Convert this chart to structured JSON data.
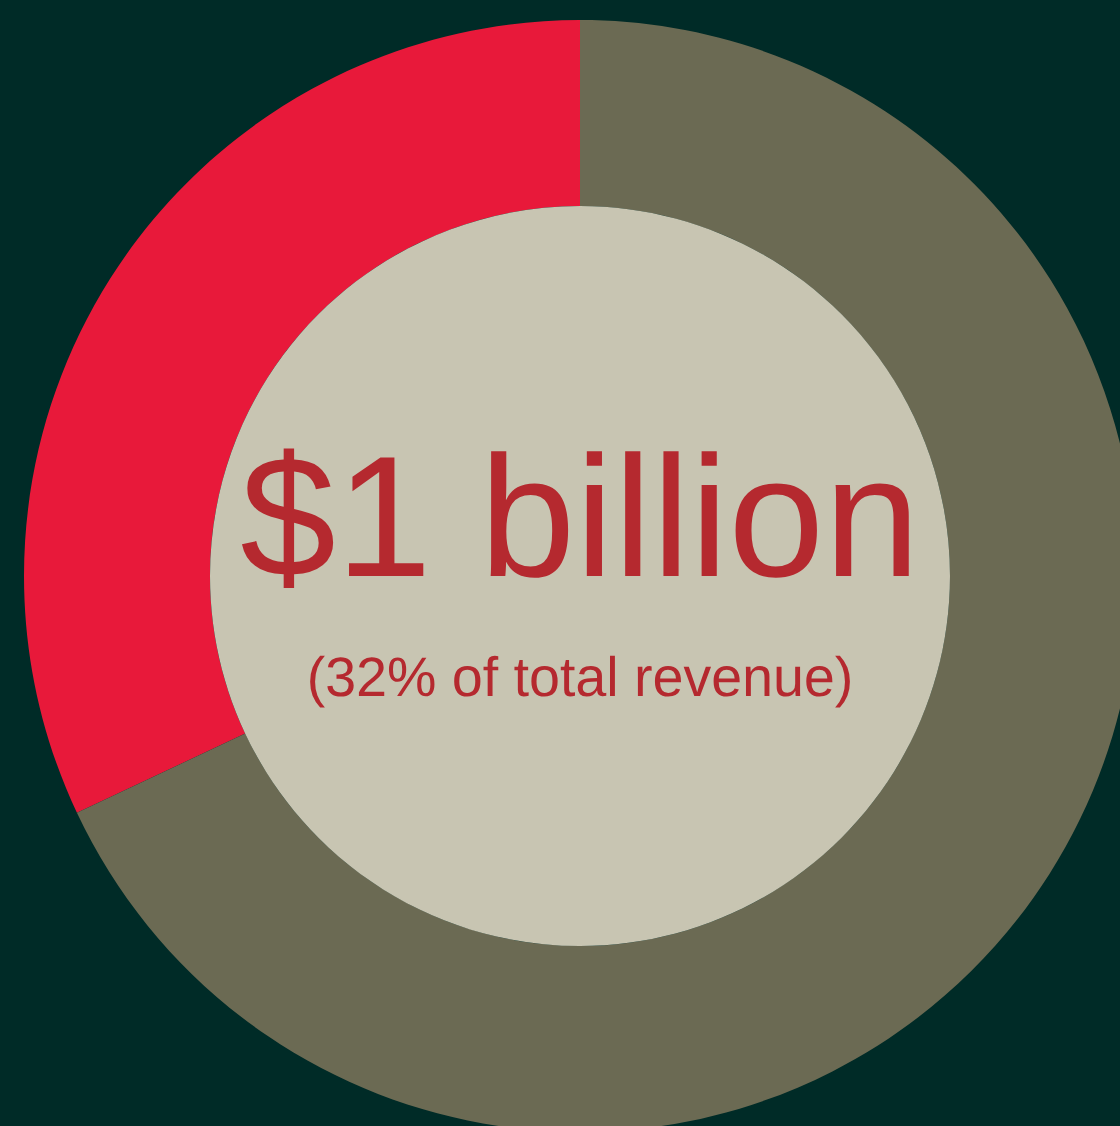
{
  "chart_data": {
    "type": "donut",
    "categories": [
      null,
      null
    ],
    "values": [
      32,
      68
    ],
    "colors": [
      "#e8193a",
      "#6b6a53"
    ],
    "annotations": [
      "$1 billion",
      "(32% of total revenue)"
    ]
  }
}
